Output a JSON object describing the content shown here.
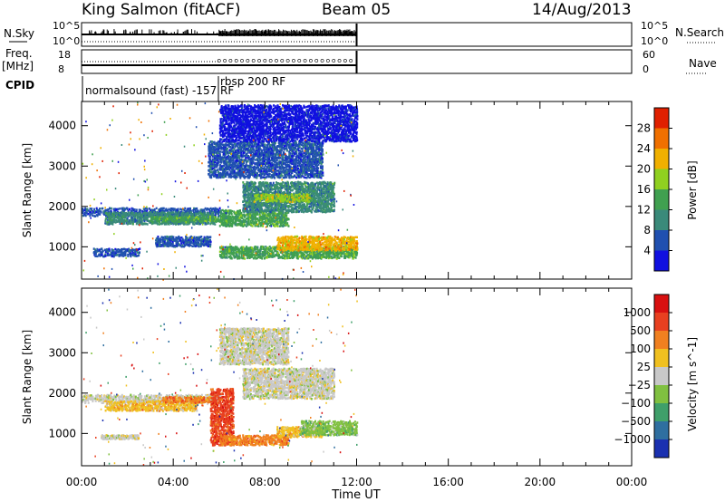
{
  "header": {
    "station": "King Salmon (fitACF)",
    "beam": "Beam 05",
    "date": "14/Aug/2013"
  },
  "status_panels": {
    "nsky_label": "N.Sky",
    "nsky_ticks": [
      "10^5",
      "10^0"
    ],
    "nsearch_label": "N.Search",
    "nsearch_ticks": [
      "10^5",
      "10^0"
    ],
    "freq_label": "Freq.",
    "freq_unit": "[MHz]",
    "freq_ticks": [
      "18",
      "8"
    ],
    "nave_label": "Nave",
    "nave_ticks": [
      "60",
      "0"
    ],
    "cpid_label": "CPID",
    "cpid_entries": [
      {
        "text": "normalsound (fast) -157 RF",
        "start_hour": 0
      },
      {
        "text": "rbsp 200 RF",
        "start_hour": 6
      }
    ]
  },
  "chart_data": [
    {
      "type": "heatmap",
      "name": "power",
      "xlabel": "",
      "ylabel": "Slant Range [km]",
      "xlim": [
        0,
        24
      ],
      "ylim": [
        200,
        4600
      ],
      "yticks": [
        1000,
        2000,
        3000,
        4000
      ],
      "colorbar": {
        "label": "Power [dB]",
        "ticks": [
          "4",
          "8",
          "12",
          "16",
          "20",
          "24",
          "28"
        ],
        "colors": [
          "#1010e0",
          "#2050b0",
          "#3a8a7a",
          "#40a050",
          "#90d020",
          "#f0b000",
          "#f07000",
          "#e02000"
        ]
      },
      "data_end_hour": 12,
      "regions": [
        {
          "t": [
            0.0,
            6.0
          ],
          "r": [
            1750,
            1950
          ],
          "level": 1
        },
        {
          "t": [
            1.0,
            5.8
          ],
          "r": [
            1550,
            1850
          ],
          "level": 2
        },
        {
          "t": [
            3.0,
            6.5
          ],
          "r": [
            1600,
            1750
          ],
          "level": 3
        },
        {
          "t": [
            0.5,
            2.5
          ],
          "r": [
            750,
            950
          ],
          "level": 1
        },
        {
          "t": [
            3.2,
            5.6
          ],
          "r": [
            1000,
            1250
          ],
          "level": 1
        },
        {
          "t": [
            6.0,
            12.0
          ],
          "r": [
            700,
            1000
          ],
          "level": 3
        },
        {
          "t": [
            8.5,
            12.0
          ],
          "r": [
            900,
            1250
          ],
          "level": 5
        },
        {
          "t": [
            6.0,
            9.0
          ],
          "r": [
            1500,
            1900
          ],
          "level": 3
        },
        {
          "t": [
            7.0,
            11.0
          ],
          "r": [
            1850,
            2600
          ],
          "level": 2
        },
        {
          "t": [
            7.5,
            10.0
          ],
          "r": [
            2100,
            2300
          ],
          "level": 4
        },
        {
          "t": [
            5.5,
            10.5
          ],
          "r": [
            2700,
            3600
          ],
          "level": 1
        },
        {
          "t": [
            6.0,
            12.0
          ],
          "r": [
            3600,
            4500
          ],
          "level": 0
        }
      ]
    },
    {
      "type": "heatmap",
      "name": "velocity",
      "xlabel": "Time UT",
      "ylabel": "Slant Range [km]",
      "xlim": [
        0,
        24
      ],
      "ylim": [
        200,
        4600
      ],
      "yticks": [
        1000,
        2000,
        3000,
        4000
      ],
      "xticks": [
        "00:00",
        "04:00",
        "08:00",
        "12:00",
        "16:00",
        "20:00",
        "00:00"
      ],
      "colorbar": {
        "label": "Velocity [m s^-1]",
        "ticks": [
          "1000",
          "500",
          "100",
          "25",
          "−25",
          "−100",
          "−500",
          "−1000"
        ],
        "colors": [
          "#1a30b0",
          "#2f6fa0",
          "#3f9f6a",
          "#80c040",
          "#c8c8c8",
          "#f0c020",
          "#f08020",
          "#e84020",
          "#d81010"
        ]
      },
      "data_end_hour": 12,
      "regions": [
        {
          "t": [
            0.0,
            6.0
          ],
          "r": [
            1750,
            1950
          ],
          "level": 4
        },
        {
          "t": [
            1.0,
            5.0
          ],
          "r": [
            1550,
            1800
          ],
          "level": 5
        },
        {
          "t": [
            3.5,
            5.6
          ],
          "r": [
            1750,
            1900
          ],
          "level": 6
        },
        {
          "t": [
            5.6,
            6.6
          ],
          "r": [
            700,
            2100
          ],
          "level": 7
        },
        {
          "t": [
            6.0,
            9.0
          ],
          "r": [
            700,
            950
          ],
          "level": 6
        },
        {
          "t": [
            8.5,
            10.5
          ],
          "r": [
            900,
            1150
          ],
          "level": 5
        },
        {
          "t": [
            9.5,
            12.0
          ],
          "r": [
            950,
            1300
          ],
          "level": 3
        },
        {
          "t": [
            7.0,
            11.0
          ],
          "r": [
            1850,
            2600
          ],
          "level": 4
        },
        {
          "t": [
            6.0,
            9.0
          ],
          "r": [
            2700,
            3600
          ],
          "level": 4
        },
        {
          "t": [
            0.8,
            2.5
          ],
          "r": [
            850,
            950
          ],
          "level": 4
        }
      ]
    }
  ]
}
